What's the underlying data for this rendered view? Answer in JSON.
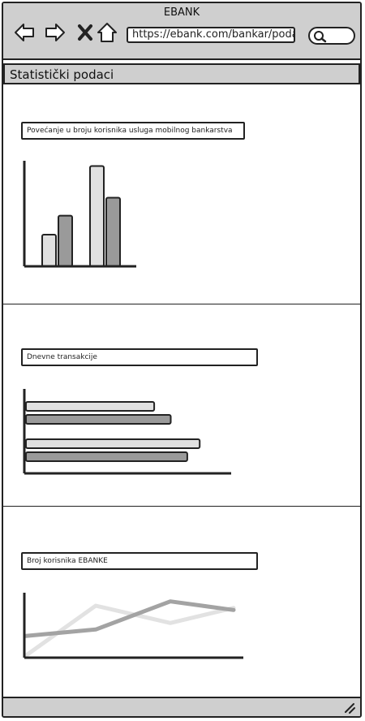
{
  "window": {
    "title": "EBANK"
  },
  "toolbar": {
    "url": "https://ebank.com/bankar/poda",
    "icons": [
      "back-arrow-icon",
      "forward-arrow-icon",
      "close-x-icon",
      "home-icon",
      "search-icon"
    ]
  },
  "page": {
    "heading": "Statistički podaci"
  },
  "charts": [
    {
      "title": "Povećanje u broju korisnika usluga mobilnog bankarstva"
    },
    {
      "title": "Dnevne transakcije"
    },
    {
      "title": "Broj korisnika EBANKE"
    }
  ],
  "colors": {
    "chrome": "#cfcfcf",
    "series_light": "#e0e0e0",
    "series_dark": "#9a9a9a",
    "line_light": "#e2e2e2",
    "line_dark": "#a3a3a3"
  },
  "chart_data": [
    {
      "type": "bar",
      "orientation": "vertical",
      "categories": [
        "",
        ""
      ],
      "series": [
        {
          "values": [
            3,
            9.5
          ]
        },
        {
          "values": [
            4.8,
            6.5
          ]
        }
      ],
      "ylim": [
        0,
        10
      ],
      "grid": false
    },
    {
      "type": "bar",
      "orientation": "horizontal",
      "categories": [
        "",
        ""
      ],
      "series": [
        {
          "values": [
            6.2,
            8.4
          ]
        },
        {
          "values": [
            7.0,
            7.8
          ]
        }
      ],
      "xlim": [
        0,
        10
      ],
      "grid": false
    },
    {
      "type": "line",
      "x": [
        0,
        1,
        2,
        3
      ],
      "series": [
        {
          "values": [
            0.1,
            2.4,
            1.6,
            2.3
          ]
        },
        {
          "values": [
            1.0,
            1.3,
            2.6,
            2.2
          ]
        }
      ],
      "ylim": [
        0,
        3
      ],
      "grid": false
    }
  ]
}
